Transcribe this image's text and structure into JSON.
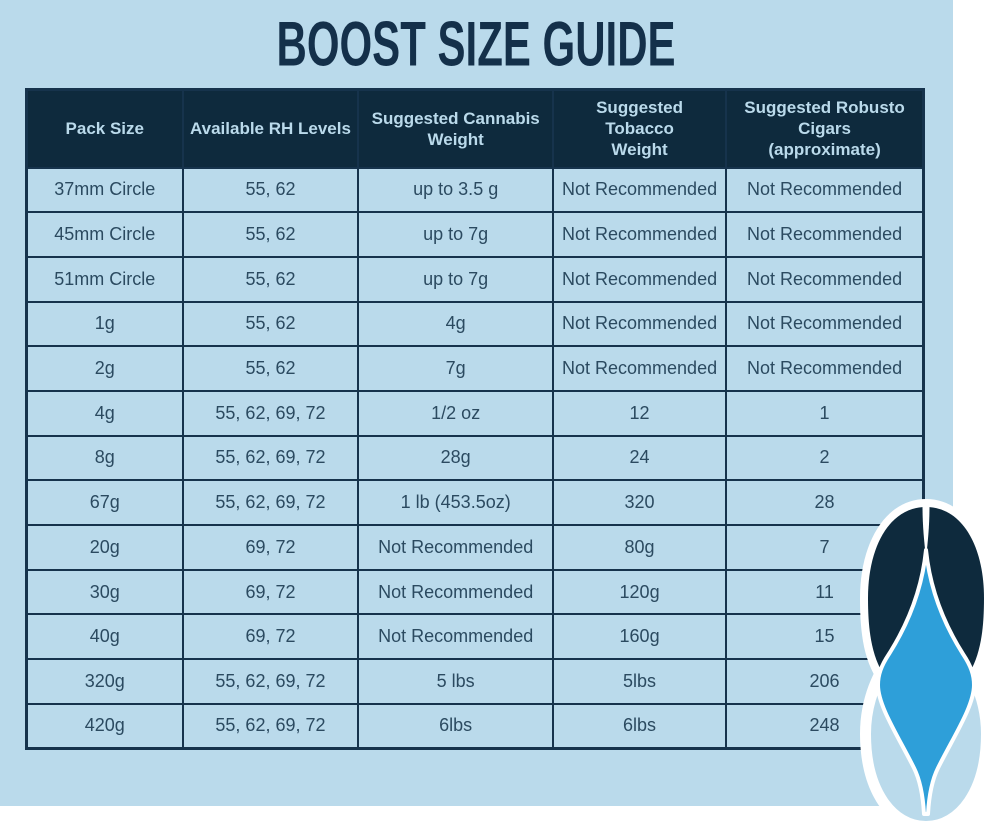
{
  "title": "BOOST SIZE GUIDE",
  "colors": {
    "panel_background": "#badaeb",
    "header_background": "#0e2a3d",
    "cell_text": "#2b4a60",
    "table_border": "#16334c",
    "title_text": "#14304a",
    "logo_flame_blue": "#2e9fd9",
    "logo_navy": "#0e2a3d",
    "logo_light_blue": "#badaeb",
    "logo_outline": "#ffffff"
  },
  "icons": {
    "logo": "boost-flame-drop-logo"
  },
  "table": {
    "headers": [
      "Pack Size",
      "Available RH Levels",
      "Suggested Cannabis\nWeight",
      "Suggested Tobacco\nWeight",
      "Suggested Robusto\nCigars\n(approximate)"
    ],
    "rows": [
      [
        "37mm Circle",
        "55, 62",
        "up to 3.5 g",
        "Not Recommended",
        "Not Recommended"
      ],
      [
        "45mm Circle",
        "55, 62",
        "up to 7g",
        "Not Recommended",
        "Not Recommended"
      ],
      [
        "51mm Circle",
        "55, 62",
        "up to 7g",
        "Not Recommended",
        "Not Recommended"
      ],
      [
        "1g",
        "55, 62",
        "4g",
        "Not Recommended",
        "Not Recommended"
      ],
      [
        "2g",
        "55, 62",
        "7g",
        "Not Recommended",
        "Not Recommended"
      ],
      [
        "4g",
        "55, 62, 69, 72",
        "1/2 oz",
        "12",
        "1"
      ],
      [
        "8g",
        "55, 62, 69, 72",
        "28g",
        "24",
        "2"
      ],
      [
        "67g",
        "55, 62, 69, 72",
        "1 lb (453.5oz)",
        "320",
        "28"
      ],
      [
        "20g",
        "69, 72",
        "Not Recommended",
        "80g",
        "7"
      ],
      [
        "30g",
        "69, 72",
        "Not Recommended",
        "120g",
        "11"
      ],
      [
        "40g",
        "69, 72",
        "Not Recommended",
        "160g",
        "15"
      ],
      [
        "320g",
        "55, 62, 69, 72",
        "5 lbs",
        "5lbs",
        "206"
      ],
      [
        "420g",
        "55, 62, 69, 72",
        "6lbs",
        "6lbs",
        "248"
      ]
    ]
  }
}
